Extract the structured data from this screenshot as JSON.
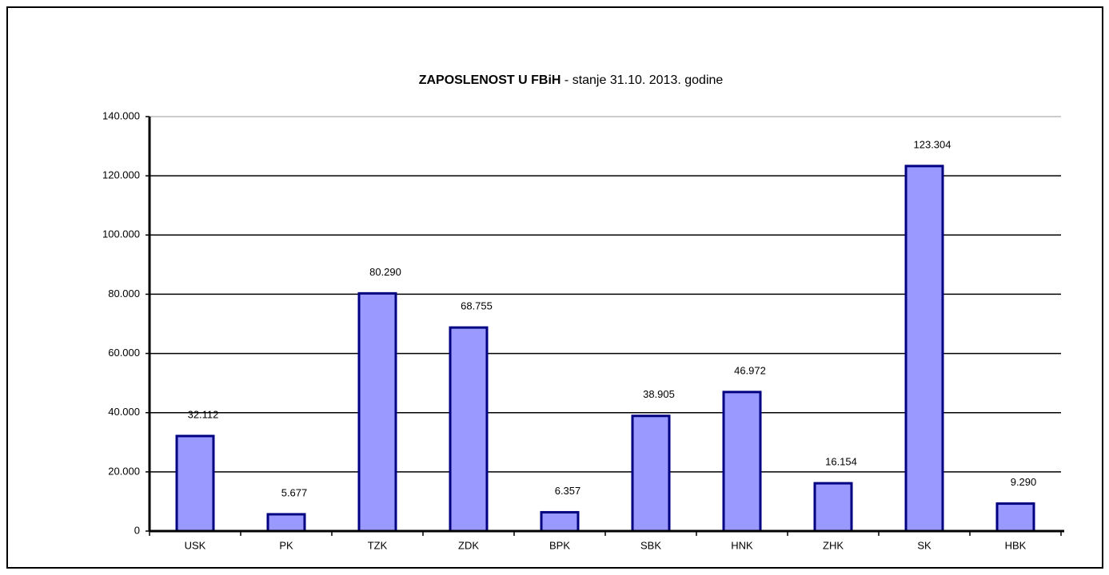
{
  "chart_data": {
    "type": "bar",
    "title": "ZAPOSLENOST U FBiH",
    "subtitle": " - stanje 31.10. 2013. godine",
    "categories": [
      "USK",
      "PK",
      "TZK",
      "ZDK",
      "BPK",
      "SBK",
      "HNK",
      "ZHK",
      "SK",
      "HBK"
    ],
    "values": [
      32112,
      5677,
      80290,
      68755,
      6357,
      38905,
      46972,
      16154,
      123304,
      9290
    ],
    "value_labels": [
      "32.112",
      "5.677",
      "80.290",
      "68.755",
      "6.357",
      "38.905",
      "46.972",
      "16.154",
      "123.304",
      "9.290"
    ],
    "color": "#9999ff",
    "edge_color": "#000080",
    "ylim": [
      0,
      140000
    ],
    "yticks": [
      0,
      {
        "value": 20000,
        "label": "20.000"
      },
      {
        "value": 40000,
        "label": "40.000"
      },
      {
        "value": 60000,
        "label": "60.000"
      },
      {
        "value": 80000,
        "label": "80.000"
      },
      {
        "value": 100000,
        "label": "100.000"
      },
      {
        "value": 120000,
        "label": "120.000"
      },
      {
        "value": 140000,
        "label": "140.000"
      }
    ],
    "grid": true
  }
}
